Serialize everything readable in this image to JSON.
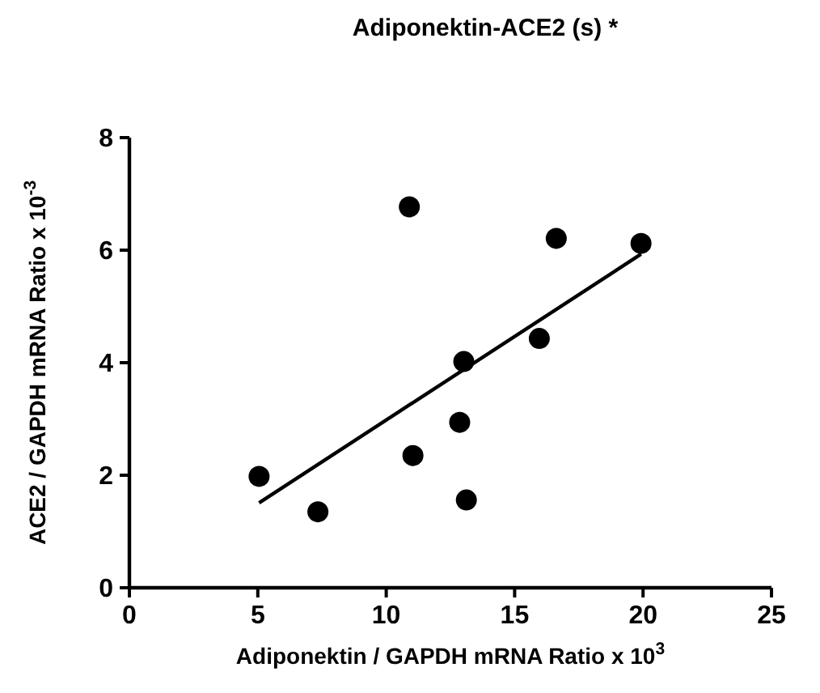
{
  "chart_data": {
    "type": "scatter",
    "title": "Adiponektin-ACE2 (s)  *",
    "xlabel": "Adiponektin / GAPDH mRNA Ratio x 10$^{3}$",
    "ylabel": "ACE2 / GAPDH mRNA Ratio x 10$^{-3}$",
    "xlim": [
      0,
      25
    ],
    "xticks": [
      0,
      5,
      10,
      15,
      20,
      25
    ],
    "ylim": [
      0,
      8
    ],
    "yticks": [
      0,
      2,
      4,
      6,
      8
    ],
    "grid": false,
    "series": [
      {
        "color": "#000000",
        "marker": "circle",
        "x": [
          5.05,
          7.34,
          10.9,
          11.04,
          12.86,
          13.02,
          13.12,
          15.96,
          16.62,
          19.92
        ],
        "values": [
          1.98,
          1.35,
          6.77,
          2.35,
          2.94,
          4.02,
          1.56,
          4.43,
          6.21,
          6.12
        ]
      },
      {
        "type": "line",
        "color": "#000000",
        "x": [
          5.05,
          19.92
        ],
        "values": [
          1.51,
          5.93
        ],
        "line_style": "solid"
      }
    ]
  }
}
